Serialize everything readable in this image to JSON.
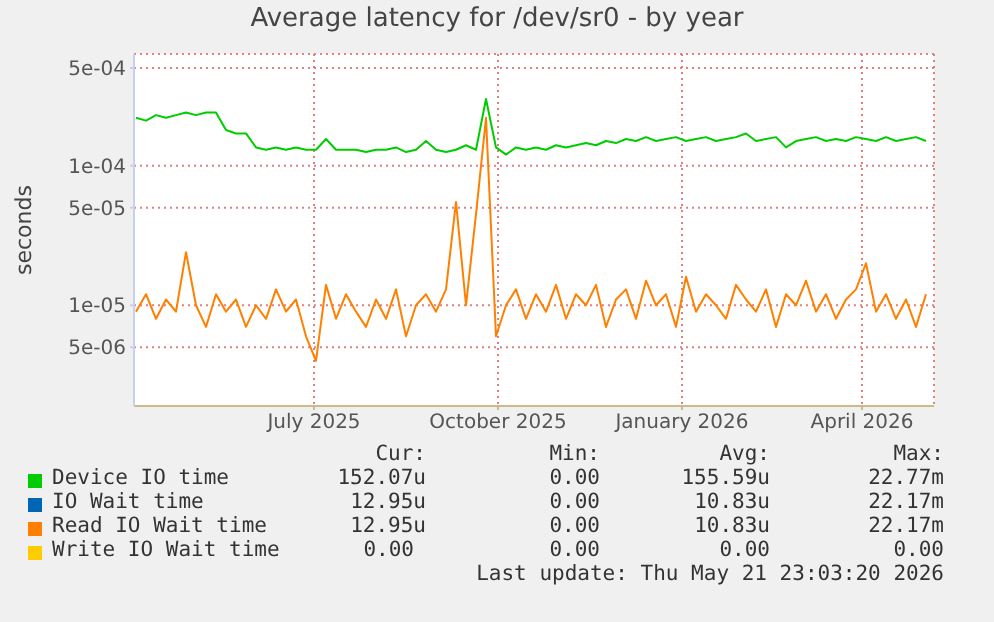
{
  "chart_data": {
    "type": "line",
    "title": "Average latency for /dev/sr0 - by year",
    "ylabel": "seconds",
    "log": "y",
    "grid": true,
    "legend": "bottom",
    "xlim": [
      "2025-04-02",
      "2026-05-07"
    ],
    "xticks": [
      {
        "value": "2025-07-01",
        "label": "July 2025"
      },
      {
        "value": "2025-10-01",
        "label": "October 2025"
      },
      {
        "value": "2026-01-01",
        "label": "January 2026"
      },
      {
        "value": "2026-04-01",
        "label": "April 2026"
      }
    ],
    "ylim": [
      1.9e-06,
      0.00063
    ],
    "yticks": [
      {
        "value": 5e-06,
        "label": "5e-06"
      },
      {
        "value": 1e-05,
        "label": "1e-05"
      },
      {
        "value": 5e-05,
        "label": "5e-05"
      },
      {
        "value": 0.0001,
        "label": "1e-04"
      },
      {
        "value": 0.0005,
        "label": "5e-04"
      }
    ],
    "x": [
      "2025-04-03",
      "2025-04-08",
      "2025-04-13",
      "2025-04-18",
      "2025-04-23",
      "2025-04-28",
      "2025-05-03",
      "2025-05-08",
      "2025-05-13",
      "2025-05-18",
      "2025-05-23",
      "2025-05-28",
      "2025-06-02",
      "2025-06-07",
      "2025-06-12",
      "2025-06-17",
      "2025-06-22",
      "2025-06-27",
      "2025-07-02",
      "2025-07-07",
      "2025-07-12",
      "2025-07-17",
      "2025-07-22",
      "2025-07-27",
      "2025-08-01",
      "2025-08-06",
      "2025-08-11",
      "2025-08-16",
      "2025-08-21",
      "2025-08-26",
      "2025-08-31",
      "2025-09-05",
      "2025-09-10",
      "2025-09-15",
      "2025-09-20",
      "2025-09-25",
      "2025-09-30",
      "2025-10-05",
      "2025-10-10",
      "2025-10-15",
      "2025-10-20",
      "2025-10-25",
      "2025-10-30",
      "2025-11-04",
      "2025-11-09",
      "2025-11-14",
      "2025-11-19",
      "2025-11-24",
      "2025-11-29",
      "2025-12-04",
      "2025-12-09",
      "2025-12-14",
      "2025-12-19",
      "2025-12-24",
      "2025-12-29",
      "2026-01-03",
      "2026-01-08",
      "2026-01-13",
      "2026-01-18",
      "2026-01-23",
      "2026-01-28",
      "2026-02-02",
      "2026-02-07",
      "2026-02-12",
      "2026-02-17",
      "2026-02-22",
      "2026-02-27",
      "2026-03-04",
      "2026-03-09",
      "2026-03-14",
      "2026-03-19",
      "2026-03-24",
      "2026-03-29",
      "2026-04-03",
      "2026-04-08",
      "2026-04-13",
      "2026-04-18",
      "2026-04-23",
      "2026-04-28",
      "2026-05-03"
    ],
    "series": [
      {
        "name": "Device IO time",
        "color": "#00cc00",
        "values": [
          0.00022,
          0.00021,
          0.00023,
          0.00022,
          0.00023,
          0.00024,
          0.00023,
          0.00024,
          0.00024,
          0.00018,
          0.00017,
          0.00017,
          0.000135,
          0.00013,
          0.000135,
          0.00013,
          0.000135,
          0.00013,
          0.00013,
          0.000155,
          0.00013,
          0.00013,
          0.00013,
          0.000125,
          0.00013,
          0.00013,
          0.000135,
          0.000125,
          0.00013,
          0.00015,
          0.00013,
          0.000125,
          0.00013,
          0.00014,
          0.00013,
          0.0003,
          0.000135,
          0.00012,
          0.000135,
          0.00013,
          0.000135,
          0.00013,
          0.00014,
          0.000135,
          0.00014,
          0.000145,
          0.00014,
          0.00015,
          0.000145,
          0.000155,
          0.00015,
          0.00016,
          0.00015,
          0.000155,
          0.00016,
          0.00015,
          0.000155,
          0.00016,
          0.00015,
          0.000155,
          0.00016,
          0.00017,
          0.00015,
          0.000155,
          0.00016,
          0.000135,
          0.00015,
          0.000155,
          0.00016,
          0.00015,
          0.000155,
          0.00015,
          0.00016,
          0.000155,
          0.00015,
          0.00016,
          0.00015,
          0.000155,
          0.00016,
          0.00015
        ]
      },
      {
        "name": "IO Wait time",
        "color": "#0066b3",
        "values": [
          null,
          null,
          null,
          null,
          null,
          null,
          null,
          null,
          null,
          null,
          null,
          null,
          null,
          null,
          null,
          null,
          null,
          null,
          null,
          null,
          null,
          null,
          null,
          null,
          null,
          null,
          null,
          null,
          null,
          null,
          null,
          null,
          null,
          null,
          null,
          null,
          null,
          null,
          null,
          null,
          null,
          null,
          null,
          null,
          null,
          null,
          null,
          null,
          null,
          null,
          null,
          null,
          null,
          null,
          null,
          null,
          null,
          null,
          null,
          null,
          null,
          null,
          null,
          null,
          null,
          null,
          null,
          null,
          null,
          null,
          null,
          null,
          null,
          null,
          null,
          null,
          null,
          null,
          null,
          null
        ]
      },
      {
        "name": "Read IO Wait time",
        "color": "#ff8000",
        "values": [
          9e-06,
          1.2e-05,
          8e-06,
          1.1e-05,
          9e-06,
          2.4e-05,
          1e-05,
          7e-06,
          1.2e-05,
          9e-06,
          1.1e-05,
          7e-06,
          1e-05,
          8e-06,
          1.3e-05,
          9e-06,
          1.1e-05,
          6e-06,
          4e-06,
          1.4e-05,
          8e-06,
          1.2e-05,
          9e-06,
          7e-06,
          1.1e-05,
          8e-06,
          1.3e-05,
          6e-06,
          1e-05,
          1.2e-05,
          9e-06,
          1.3e-05,
          5.5e-05,
          1e-05,
          4.5e-05,
          0.00022,
          6e-06,
          1e-05,
          1.3e-05,
          8e-06,
          1.2e-05,
          9e-06,
          1.4e-05,
          8e-06,
          1.2e-05,
          1e-05,
          1.4e-05,
          7e-06,
          1.1e-05,
          1.3e-05,
          8e-06,
          1.5e-05,
          1e-05,
          1.2e-05,
          7e-06,
          1.6e-05,
          9e-06,
          1.2e-05,
          1e-05,
          8e-06,
          1.4e-05,
          1.1e-05,
          9e-06,
          1.3e-05,
          7e-06,
          1.2e-05,
          1e-05,
          1.5e-05,
          9e-06,
          1.2e-05,
          8e-06,
          1.1e-05,
          1.3e-05,
          2e-05,
          9e-06,
          1.2e-05,
          8e-06,
          1.1e-05,
          7e-06,
          1.2e-05
        ]
      },
      {
        "name": "Write IO Wait time",
        "color": "#ffcc00",
        "values": [
          null,
          null,
          null,
          null,
          null,
          null,
          null,
          null,
          null,
          null,
          null,
          null,
          null,
          null,
          null,
          null,
          null,
          null,
          null,
          null,
          null,
          null,
          null,
          null,
          null,
          null,
          null,
          null,
          null,
          null,
          null,
          null,
          null,
          null,
          null,
          null,
          null,
          null,
          null,
          null,
          null,
          null,
          null,
          null,
          null,
          null,
          null,
          null,
          null,
          null,
          null,
          null,
          null,
          null,
          null,
          null,
          null,
          null,
          null,
          null,
          null,
          null,
          null,
          null,
          null,
          null,
          null,
          null,
          null,
          null,
          null,
          null,
          null,
          null,
          null,
          null,
          null,
          null,
          null,
          null
        ]
      }
    ],
    "annotations": [
      "Cur:",
      "Min:",
      "Avg:",
      "Max:",
      "152.07u",
      "0.00",
      "155.59u",
      "22.77m",
      "12.95u",
      "0.00",
      "10.83u",
      "22.17m",
      "12.95u",
      "0.00",
      "10.83u",
      "22.17m",
      "0.00",
      "0.00",
      "0.00",
      "0.00",
      "Last update: Thu May 21 23:03:20 2026"
    ]
  }
}
